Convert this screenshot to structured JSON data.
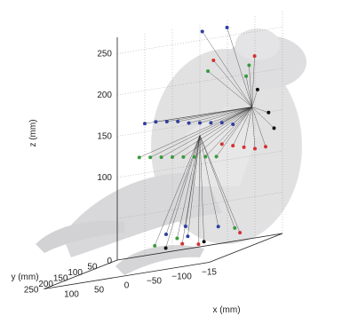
{
  "chart_data": {
    "type": "scatter",
    "title": "",
    "plot_kind": "3d-scatter-with-line-segments",
    "background_image": "bird-silhouette",
    "grid": true,
    "xlabel": "x (mm)",
    "ylabel": "y (mm)",
    "zlabel": "z (mm)",
    "x_ticks": [
      "100",
      "50",
      "0",
      "−50",
      "−100",
      "−15"
    ],
    "y_ticks": [
      "0",
      "50",
      "100",
      "150",
      "200",
      "250"
    ],
    "z_ticks": [
      "250",
      "200",
      "150",
      "100"
    ],
    "x_range": [
      150,
      -150
    ],
    "y_range": [
      0,
      250
    ],
    "z_range": [
      0,
      270
    ],
    "colors": {
      "blue": "#2f3f9e",
      "green": "#3a9a3a",
      "red": "#d63030",
      "black": "#111111",
      "line": "#333333"
    },
    "series": [
      {
        "name": "",
        "color": "blue",
        "points": [
          [
            100,
            0,
            160
          ],
          [
            80,
            0,
            160
          ],
          [
            60,
            0,
            158
          ],
          [
            40,
            0,
            156
          ],
          [
            20,
            0,
            152
          ],
          [
            0,
            0,
            150
          ],
          [
            -20,
            0,
            148
          ],
          [
            -40,
            0,
            146
          ],
          [
            -60,
            0,
            142
          ],
          [
            -15,
            20,
            262
          ],
          [
            -60,
            20,
            262
          ],
          [
            10,
            30,
            30
          ],
          [
            40,
            40,
            25
          ],
          [
            -10,
            60,
            20
          ],
          [
            -60,
            50,
            25
          ]
        ]
      },
      {
        "name": "",
        "color": "green",
        "points": [
          [
            110,
            0,
            120
          ],
          [
            90,
            0,
            118
          ],
          [
            70,
            0,
            116
          ],
          [
            50,
            0,
            114
          ],
          [
            30,
            0,
            112
          ],
          [
            10,
            0,
            110
          ],
          [
            -10,
            0,
            108
          ],
          [
            -30,
            0,
            106
          ],
          [
            -20,
            10,
            212
          ],
          [
            -100,
            20,
            212
          ],
          [
            -100,
            30,
            200
          ],
          [
            20,
            40,
            18
          ],
          [
            50,
            60,
            15
          ],
          [
            -90,
            50,
            20
          ]
        ]
      },
      {
        "name": "",
        "color": "red",
        "points": [
          [
            -40,
            0,
            120
          ],
          [
            -60,
            0,
            116
          ],
          [
            -80,
            0,
            112
          ],
          [
            -100,
            0,
            108
          ],
          [
            -30,
            10,
            224
          ],
          [
            -110,
            20,
            222
          ],
          [
            -130,
            20,
            110
          ],
          [
            0,
            60,
            12
          ],
          [
            -40,
            80,
            10
          ],
          [
            -110,
            70,
            15
          ]
        ]
      },
      {
        "name": "",
        "color": "black",
        "points": [
          [
            -110,
            10,
            180
          ],
          [
            -130,
            10,
            150
          ],
          [
            -140,
            10,
            130
          ],
          [
            -50,
            80,
            12
          ],
          [
            30,
            60,
            10
          ]
        ]
      }
    ]
  }
}
